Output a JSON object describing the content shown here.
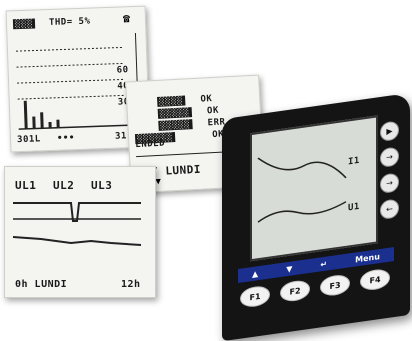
{
  "thd_screen": {
    "header_tag": "░░░",
    "title": "THD= 5%",
    "scale": [
      "60",
      "40",
      "30"
    ],
    "footer_left": "301L",
    "footer_dots": "•••",
    "footer_right": "31"
  },
  "status_screen": {
    "rows": [
      {
        "tag": "░░░░",
        "status": "OK"
      },
      {
        "tag": "░░░░░",
        "status": "OK"
      },
      {
        "tag": "░░░░░",
        "status": "ERR"
      },
      {
        "tag": "░░░░░░",
        "status": "OK"
      }
    ],
    "ended": "ENDED",
    "day_label": "00/ LUNDI"
  },
  "curve_screen": {
    "channels": [
      "UL1",
      "UL2",
      "UL3"
    ],
    "footer_left": "0h  LUNDI",
    "footer_right": "12h"
  },
  "device": {
    "screen_labels": {
      "top": "I1",
      "bottom": "U1"
    },
    "nav_labels": [
      "▲",
      "▼",
      "↵",
      "Menu"
    ],
    "function_keys": [
      "F1",
      "F2",
      "F3",
      "F4"
    ],
    "side_keys": [
      "▶",
      "→",
      "→",
      "←"
    ]
  }
}
